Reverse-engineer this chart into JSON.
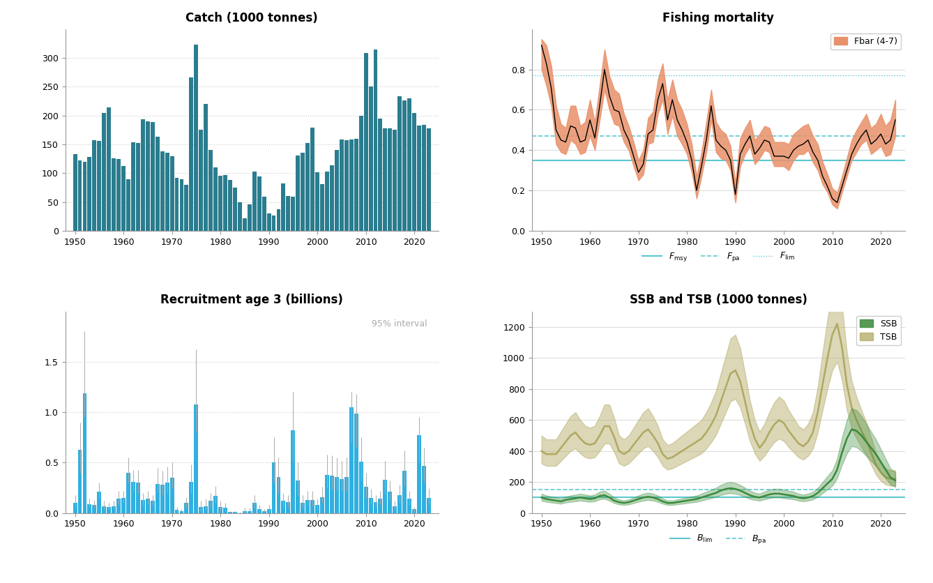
{
  "catch_years": [
    1950,
    1951,
    1952,
    1953,
    1954,
    1955,
    1956,
    1957,
    1958,
    1959,
    1960,
    1961,
    1962,
    1963,
    1964,
    1965,
    1966,
    1967,
    1968,
    1969,
    1970,
    1971,
    1972,
    1973,
    1974,
    1975,
    1976,
    1977,
    1978,
    1979,
    1980,
    1981,
    1982,
    1983,
    1984,
    1985,
    1986,
    1987,
    1988,
    1989,
    1990,
    1991,
    1992,
    1993,
    1994,
    1995,
    1996,
    1997,
    1998,
    1999,
    2000,
    2001,
    2002,
    2003,
    2004,
    2005,
    2006,
    2007,
    2008,
    2009,
    2010,
    2011,
    2012,
    2013,
    2014,
    2015,
    2016,
    2017,
    2018,
    2019,
    2020,
    2021,
    2022,
    2023
  ],
  "catch_values": [
    133,
    122,
    120,
    128,
    157,
    156,
    204,
    214,
    126,
    124,
    112,
    89,
    154,
    152,
    194,
    190,
    189,
    163,
    138,
    135,
    130,
    92,
    90,
    80,
    266,
    323,
    175,
    220,
    140,
    110,
    95,
    97,
    88,
    75,
    49,
    22,
    46,
    103,
    94,
    59,
    30,
    27,
    37,
    82,
    60,
    59,
    131,
    135,
    153,
    179,
    101,
    81,
    103,
    114,
    140,
    158,
    157,
    159,
    160,
    200,
    308,
    250,
    315,
    195,
    178,
    178,
    175,
    234,
    226,
    230,
    204,
    183,
    184,
    178
  ],
  "catch_color": "#2a7d8e",
  "catch_title": "Catch (1000 tonnes)",
  "fm_years": [
    1950,
    1951,
    1952,
    1953,
    1954,
    1955,
    1956,
    1957,
    1958,
    1959,
    1960,
    1961,
    1962,
    1963,
    1964,
    1965,
    1966,
    1967,
    1968,
    1969,
    1970,
    1971,
    1972,
    1973,
    1974,
    1975,
    1976,
    1977,
    1978,
    1979,
    1980,
    1981,
    1982,
    1983,
    1984,
    1985,
    1986,
    1987,
    1988,
    1989,
    1990,
    1991,
    1992,
    1993,
    1994,
    1995,
    1996,
    1997,
    1998,
    1999,
    2000,
    2001,
    2002,
    2003,
    2004,
    2005,
    2006,
    2007,
    2008,
    2009,
    2010,
    2011,
    2012,
    2013,
    2014,
    2015,
    2016,
    2017,
    2018,
    2019,
    2020,
    2021,
    2022,
    2023
  ],
  "fm_central": [
    0.92,
    0.83,
    0.71,
    0.5,
    0.45,
    0.44,
    0.52,
    0.51,
    0.44,
    0.45,
    0.55,
    0.46,
    0.62,
    0.8,
    0.67,
    0.6,
    0.59,
    0.5,
    0.45,
    0.37,
    0.29,
    0.33,
    0.48,
    0.5,
    0.65,
    0.73,
    0.55,
    0.65,
    0.55,
    0.5,
    0.44,
    0.35,
    0.2,
    0.32,
    0.45,
    0.62,
    0.45,
    0.42,
    0.4,
    0.35,
    0.18,
    0.38,
    0.43,
    0.47,
    0.38,
    0.41,
    0.45,
    0.44,
    0.37,
    0.37,
    0.37,
    0.36,
    0.4,
    0.42,
    0.43,
    0.45,
    0.39,
    0.35,
    0.27,
    0.22,
    0.16,
    0.14,
    0.22,
    0.3,
    0.38,
    0.43,
    0.47,
    0.5,
    0.43,
    0.45,
    0.48,
    0.43,
    0.45,
    0.55
  ],
  "fm_low": [
    0.8,
    0.72,
    0.62,
    0.43,
    0.39,
    0.38,
    0.45,
    0.43,
    0.38,
    0.39,
    0.47,
    0.4,
    0.55,
    0.7,
    0.6,
    0.53,
    0.52,
    0.44,
    0.4,
    0.32,
    0.25,
    0.28,
    0.43,
    0.44,
    0.58,
    0.65,
    0.48,
    0.57,
    0.47,
    0.43,
    0.38,
    0.29,
    0.16,
    0.27,
    0.39,
    0.55,
    0.39,
    0.36,
    0.35,
    0.3,
    0.14,
    0.32,
    0.38,
    0.42,
    0.33,
    0.36,
    0.4,
    0.39,
    0.32,
    0.32,
    0.32,
    0.3,
    0.35,
    0.38,
    0.38,
    0.4,
    0.34,
    0.3,
    0.23,
    0.19,
    0.13,
    0.11,
    0.19,
    0.27,
    0.35,
    0.39,
    0.43,
    0.45,
    0.38,
    0.4,
    0.42,
    0.37,
    0.38,
    0.47
  ],
  "fm_high": [
    0.95,
    0.92,
    0.82,
    0.62,
    0.53,
    0.51,
    0.62,
    0.62,
    0.52,
    0.54,
    0.65,
    0.54,
    0.72,
    0.9,
    0.77,
    0.7,
    0.68,
    0.58,
    0.52,
    0.44,
    0.35,
    0.4,
    0.56,
    0.59,
    0.75,
    0.83,
    0.65,
    0.75,
    0.65,
    0.6,
    0.53,
    0.43,
    0.27,
    0.39,
    0.54,
    0.7,
    0.54,
    0.5,
    0.48,
    0.42,
    0.24,
    0.46,
    0.51,
    0.55,
    0.45,
    0.48,
    0.52,
    0.51,
    0.44,
    0.44,
    0.44,
    0.43,
    0.48,
    0.5,
    0.52,
    0.53,
    0.47,
    0.43,
    0.34,
    0.28,
    0.21,
    0.19,
    0.27,
    0.36,
    0.45,
    0.5,
    0.54,
    0.58,
    0.51,
    0.53,
    0.58,
    0.52,
    0.55,
    0.65
  ],
  "fm_fmsy": 0.35,
  "fm_fpa": 0.47,
  "fm_flim": 0.77,
  "fm_title": "Fishing mortality",
  "fm_legend_label": "Fbar (4-7)",
  "fm_color": "#e8916a",
  "rec_years": [
    1950,
    1951,
    1952,
    1953,
    1954,
    1955,
    1956,
    1957,
    1958,
    1959,
    1960,
    1961,
    1962,
    1963,
    1964,
    1965,
    1966,
    1967,
    1968,
    1969,
    1970,
    1971,
    1972,
    1973,
    1974,
    1975,
    1976,
    1977,
    1978,
    1979,
    1980,
    1981,
    1982,
    1983,
    1984,
    1985,
    1986,
    1987,
    1988,
    1989,
    1990,
    1991,
    1992,
    1993,
    1994,
    1995,
    1996,
    1997,
    1998,
    1999,
    2000,
    2001,
    2002,
    2003,
    2004,
    2005,
    2006,
    2007,
    2008,
    2009,
    2010,
    2011,
    2012,
    2013,
    2014,
    2015,
    2016,
    2017,
    2018,
    2019,
    2020,
    2021,
    2022,
    2023
  ],
  "rec_values": [
    0.1,
    0.63,
    1.19,
    0.09,
    0.08,
    0.21,
    0.07,
    0.06,
    0.07,
    0.14,
    0.15,
    0.4,
    0.31,
    0.3,
    0.13,
    0.14,
    0.12,
    0.29,
    0.28,
    0.3,
    0.35,
    0.03,
    0.02,
    0.1,
    0.31,
    1.08,
    0.06,
    0.07,
    0.12,
    0.17,
    0.06,
    0.05,
    0.01,
    0.01,
    0.0,
    0.02,
    0.02,
    0.1,
    0.04,
    0.02,
    0.04,
    0.5,
    0.36,
    0.12,
    0.11,
    0.82,
    0.32,
    0.1,
    0.13,
    0.13,
    0.08,
    0.16,
    0.38,
    0.37,
    0.36,
    0.34,
    0.36,
    1.05,
    0.99,
    0.51,
    0.26,
    0.15,
    0.11,
    0.14,
    0.33,
    0.21,
    0.07,
    0.18,
    0.42,
    0.14,
    0.04,
    0.77,
    0.47,
    0.15
  ],
  "rec_low": [
    0.05,
    0.4,
    0.95,
    0.06,
    0.05,
    0.15,
    0.04,
    0.04,
    0.04,
    0.09,
    0.1,
    0.3,
    0.22,
    0.2,
    0.08,
    0.09,
    0.08,
    0.2,
    0.18,
    0.2,
    0.25,
    0.01,
    0.01,
    0.06,
    0.2,
    0.8,
    0.02,
    0.03,
    0.07,
    0.1,
    0.02,
    0.02,
    0.0,
    0.0,
    0.0,
    0.0,
    0.0,
    0.05,
    0.02,
    0.01,
    0.01,
    0.3,
    0.2,
    0.07,
    0.06,
    0.5,
    0.18,
    0.05,
    0.08,
    0.07,
    0.04,
    0.1,
    0.25,
    0.23,
    0.22,
    0.22,
    0.22,
    0.7,
    0.65,
    0.32,
    0.15,
    0.09,
    0.06,
    0.09,
    0.2,
    0.13,
    0.03,
    0.11,
    0.27,
    0.08,
    0.01,
    0.5,
    0.3,
    0.08
  ],
  "rec_high": [
    0.18,
    0.9,
    1.8,
    0.14,
    0.13,
    0.3,
    0.12,
    0.1,
    0.12,
    0.22,
    0.22,
    0.55,
    0.43,
    0.43,
    0.2,
    0.22,
    0.18,
    0.45,
    0.42,
    0.46,
    0.5,
    0.06,
    0.04,
    0.16,
    0.48,
    1.62,
    0.12,
    0.14,
    0.2,
    0.27,
    0.12,
    0.1,
    0.02,
    0.02,
    0.01,
    0.05,
    0.05,
    0.18,
    0.08,
    0.04,
    0.08,
    0.75,
    0.55,
    0.2,
    0.18,
    1.2,
    0.5,
    0.18,
    0.22,
    0.22,
    0.14,
    0.26,
    0.58,
    0.57,
    0.55,
    0.52,
    0.55,
    1.2,
    1.18,
    0.75,
    0.4,
    0.24,
    0.18,
    0.22,
    0.52,
    0.32,
    0.12,
    0.28,
    0.62,
    0.22,
    0.06,
    0.95,
    0.65,
    0.25
  ],
  "rec_title": "Recruitment age 3 (billions)",
  "rec_color": "#30b0e0",
  "ssb_years": [
    1950,
    1951,
    1952,
    1953,
    1954,
    1955,
    1956,
    1957,
    1958,
    1959,
    1960,
    1961,
    1962,
    1963,
    1964,
    1965,
    1966,
    1967,
    1968,
    1969,
    1970,
    1971,
    1972,
    1973,
    1974,
    1975,
    1976,
    1977,
    1978,
    1979,
    1980,
    1981,
    1982,
    1983,
    1984,
    1985,
    1986,
    1987,
    1988,
    1989,
    1990,
    1991,
    1992,
    1993,
    1994,
    1995,
    1996,
    1997,
    1998,
    1999,
    2000,
    2001,
    2002,
    2003,
    2004,
    2005,
    2006,
    2007,
    2008,
    2009,
    2010,
    2011,
    2012,
    2013,
    2014,
    2015,
    2016,
    2017,
    2018,
    2019,
    2020,
    2021,
    2022,
    2023
  ],
  "ssb_values": [
    100,
    90,
    85,
    80,
    75,
    85,
    90,
    95,
    100,
    95,
    90,
    95,
    110,
    115,
    100,
    80,
    70,
    65,
    70,
    80,
    90,
    100,
    105,
    100,
    90,
    75,
    65,
    65,
    70,
    75,
    80,
    85,
    90,
    100,
    110,
    120,
    130,
    145,
    155,
    160,
    155,
    145,
    130,
    115,
    105,
    100,
    110,
    120,
    125,
    125,
    120,
    115,
    110,
    100,
    95,
    100,
    110,
    130,
    160,
    190,
    220,
    280,
    390,
    480,
    540,
    530,
    500,
    460,
    420,
    380,
    330,
    280,
    230,
    210
  ],
  "ssb_low": [
    80,
    72,
    68,
    64,
    60,
    68,
    72,
    76,
    80,
    76,
    72,
    76,
    88,
    92,
    80,
    64,
    56,
    52,
    56,
    64,
    72,
    80,
    84,
    80,
    72,
    60,
    52,
    52,
    56,
    60,
    64,
    68,
    72,
    80,
    88,
    96,
    104,
    116,
    124,
    128,
    124,
    116,
    104,
    92,
    84,
    80,
    88,
    96,
    100,
    100,
    96,
    92,
    88,
    80,
    76,
    80,
    88,
    104,
    128,
    152,
    176,
    224,
    312,
    384,
    432,
    424,
    400,
    368,
    336,
    304,
    264,
    224,
    184,
    168
  ],
  "ssb_high": [
    125,
    113,
    106,
    100,
    94,
    106,
    113,
    119,
    125,
    119,
    113,
    119,
    138,
    144,
    125,
    100,
    88,
    81,
    88,
    100,
    113,
    125,
    131,
    125,
    113,
    94,
    81,
    81,
    88,
    94,
    100,
    106,
    113,
    125,
    138,
    150,
    163,
    181,
    194,
    200,
    194,
    181,
    163,
    144,
    131,
    125,
    138,
    150,
    156,
    156,
    150,
    144,
    138,
    125,
    119,
    125,
    138,
    163,
    200,
    238,
    275,
    350,
    488,
    600,
    675,
    663,
    625,
    575,
    525,
    475,
    413,
    350,
    288,
    263
  ],
  "ssb_color": "#3a8a3a",
  "tsb_years": [
    1950,
    1951,
    1952,
    1953,
    1954,
    1955,
    1956,
    1957,
    1958,
    1959,
    1960,
    1961,
    1962,
    1963,
    1964,
    1965,
    1966,
    1967,
    1968,
    1969,
    1970,
    1971,
    1972,
    1973,
    1974,
    1975,
    1976,
    1977,
    1978,
    1979,
    1980,
    1981,
    1982,
    1983,
    1984,
    1985,
    1986,
    1987,
    1988,
    1989,
    1990,
    1991,
    1992,
    1993,
    1994,
    1995,
    1996,
    1997,
    1998,
    1999,
    2000,
    2001,
    2002,
    2003,
    2004,
    2005,
    2006,
    2007,
    2008,
    2009,
    2010,
    2011,
    2012,
    2013,
    2014,
    2015,
    2016,
    2017,
    2018,
    2019,
    2020,
    2021,
    2022,
    2023
  ],
  "tsb_values": [
    400,
    380,
    380,
    380,
    420,
    460,
    500,
    520,
    480,
    450,
    440,
    450,
    500,
    560,
    560,
    490,
    400,
    380,
    400,
    440,
    480,
    520,
    540,
    500,
    450,
    380,
    350,
    360,
    380,
    400,
    420,
    440,
    460,
    480,
    520,
    570,
    630,
    720,
    810,
    900,
    920,
    850,
    720,
    580,
    480,
    420,
    460,
    520,
    570,
    600,
    580,
    530,
    490,
    450,
    430,
    460,
    520,
    650,
    830,
    1000,
    1150,
    1220,
    1070,
    830,
    680,
    600,
    530,
    470,
    390,
    310,
    260,
    230,
    220,
    220
  ],
  "tsb_low": [
    320,
    304,
    304,
    304,
    336,
    368,
    400,
    416,
    384,
    360,
    352,
    360,
    400,
    448,
    448,
    392,
    320,
    304,
    320,
    352,
    384,
    416,
    432,
    400,
    360,
    304,
    280,
    288,
    304,
    320,
    336,
    352,
    368,
    384,
    416,
    456,
    504,
    576,
    648,
    720,
    736,
    680,
    576,
    464,
    384,
    336,
    368,
    416,
    456,
    480,
    464,
    424,
    392,
    360,
    344,
    368,
    416,
    520,
    664,
    800,
    920,
    976,
    856,
    664,
    544,
    480,
    424,
    376,
    312,
    248,
    208,
    184,
    176,
    176
  ],
  "tsb_high": [
    500,
    475,
    475,
    475,
    525,
    575,
    625,
    650,
    600,
    563,
    550,
    563,
    625,
    700,
    700,
    613,
    500,
    475,
    500,
    550,
    600,
    650,
    675,
    625,
    563,
    475,
    438,
    450,
    475,
    500,
    525,
    550,
    575,
    600,
    650,
    713,
    788,
    900,
    1013,
    1125,
    1150,
    1063,
    900,
    725,
    600,
    525,
    575,
    650,
    713,
    750,
    725,
    663,
    613,
    563,
    538,
    575,
    650,
    813,
    1038,
    1250,
    1438,
    1525,
    1338,
    1038,
    850,
    750,
    663,
    588,
    488,
    388,
    325,
    288,
    275,
    275
  ],
  "tsb_color": "#b0a860",
  "ssb_blim": 100,
  "ssb_bpa": 150,
  "ssb_title": "SSB and TSB (1000 tonnes)",
  "bg_color": "#ffffff",
  "grid_color": "#cccccc",
  "ref_color": "#5bc8d0"
}
